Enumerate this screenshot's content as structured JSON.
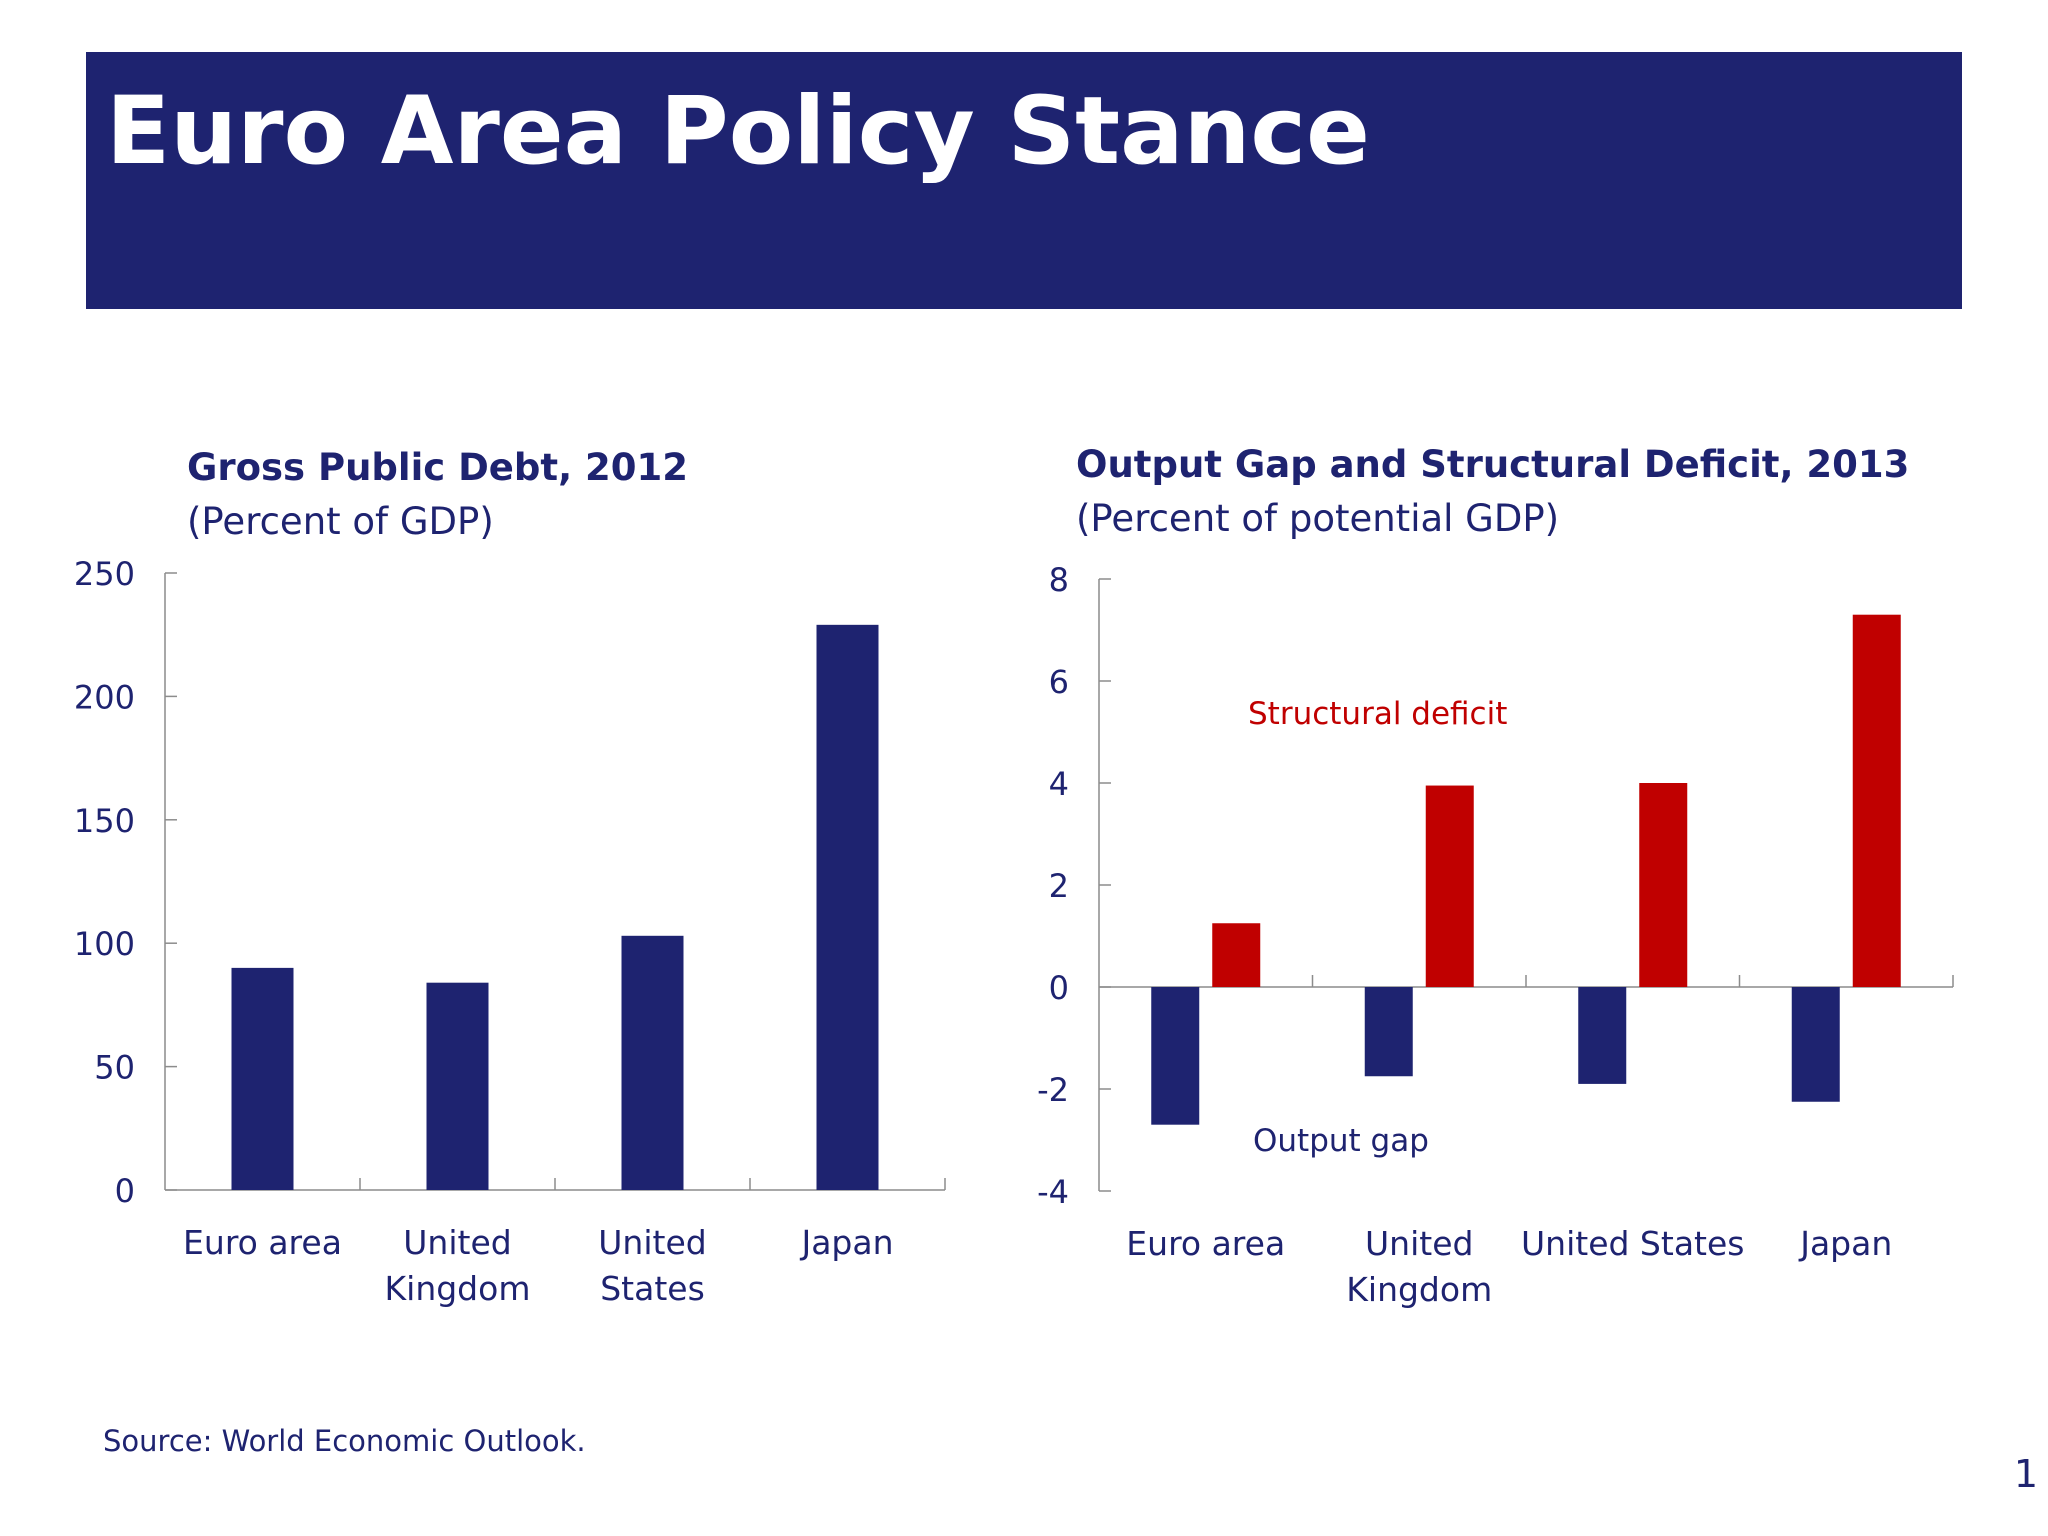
{
  "page": {
    "title": "Euro Area Policy Stance",
    "source": "Source: World Economic Outlook.",
    "page_number": "1"
  },
  "colors": {
    "banner": "#1e2370",
    "navy": "#1e2370",
    "red": "#c00000",
    "axis": "#8c8c8c"
  },
  "chart_data": [
    {
      "type": "bar",
      "title": "Gross Public Debt, 2012",
      "subtitle": "(Percent of GDP)",
      "categories": [
        [
          "Euro area"
        ],
        [
          "United",
          "Kingdom"
        ],
        [
          "United",
          "States"
        ],
        [
          "Japan"
        ]
      ],
      "series": [
        {
          "values": [
            90,
            84,
            103,
            229
          ],
          "color": "#1e2370"
        }
      ],
      "ylim": [
        0,
        250
      ],
      "yticks": [
        "0",
        "50",
        "100",
        "150",
        "200",
        "250"
      ],
      "grid": false,
      "legend": "none"
    },
    {
      "type": "bar",
      "title": "Output Gap and Structural Deficit, 2013",
      "subtitle": "(Percent of potential GDP)",
      "categories": [
        [
          "Euro area"
        ],
        [
          "United",
          "Kingdom"
        ],
        [
          "United States"
        ],
        [
          "Japan"
        ]
      ],
      "series": [
        {
          "name": "Output gap",
          "values": [
            -2.7,
            -1.75,
            -1.9,
            -2.25
          ],
          "color": "#1e2370"
        },
        {
          "name": "Structural deficit",
          "values": [
            1.25,
            3.95,
            4.0,
            7.3
          ],
          "color": "#c00000"
        }
      ],
      "ylim": [
        -4,
        8
      ],
      "yticks": [
        "-4",
        "-2",
        "0",
        "2",
        "4",
        "6",
        "8"
      ],
      "grid": false,
      "legend": "inline labels"
    }
  ]
}
